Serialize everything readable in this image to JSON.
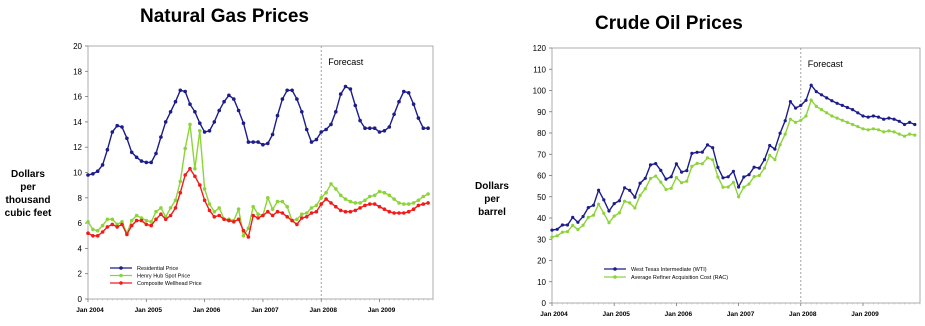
{
  "chart_data": [
    {
      "type": "line",
      "title": "Natural Gas Prices",
      "ylabel": [
        "Dollars",
        "per",
        "thousand",
        "cubic feet"
      ],
      "ylim": [
        0,
        20
      ],
      "yticks": [
        0,
        2,
        4,
        6,
        8,
        10,
        12,
        14,
        16,
        18,
        20
      ],
      "xlim": [
        0,
        71
      ],
      "xticks": [
        {
          "label": "Jan 2004",
          "month": 0
        },
        {
          "label": "Jan 2005",
          "month": 12
        },
        {
          "label": "Jan 2006",
          "month": 24
        },
        {
          "label": "Jan 2007",
          "month": 36
        },
        {
          "label": "Jan 2008",
          "month": 48
        },
        {
          "label": "Jan 2009",
          "month": 60
        }
      ],
      "forecast": {
        "label": "Forecast",
        "month": 48
      },
      "grid": false,
      "legend": "bottom-left",
      "series": [
        {
          "name": "Residential Price",
          "color": "#1c1c8a",
          "values": [
            9.8,
            9.9,
            10.1,
            10.6,
            11.8,
            13.2,
            13.7,
            13.6,
            12.7,
            11.6,
            11.2,
            10.9,
            10.8,
            10.8,
            11.5,
            12.8,
            14.0,
            14.8,
            15.6,
            16.5,
            16.4,
            15.4,
            14.8,
            13.9,
            13.2,
            13.3,
            14.0,
            14.9,
            15.6,
            16.1,
            15.8,
            14.9,
            13.9,
            12.4,
            12.4,
            12.4,
            12.2,
            12.3,
            13.0,
            14.5,
            15.8,
            16.5,
            16.5,
            15.8,
            14.8,
            13.4,
            12.4,
            12.6,
            13.2,
            13.4,
            13.8,
            14.8,
            16.2,
            16.8,
            16.6,
            15.3,
            14.1,
            13.5,
            13.5,
            13.5,
            13.2,
            13.3,
            13.6,
            14.6,
            15.6,
            16.4,
            16.3,
            15.4,
            14.3,
            13.5,
            13.5
          ]
        },
        {
          "name": "Henry Hub Spot Price",
          "color": "#8cd43a",
          "values": [
            6.1,
            5.5,
            5.4,
            5.8,
            6.3,
            6.3,
            5.9,
            6.1,
            5.2,
            6.2,
            6.6,
            6.4,
            6.2,
            6.1,
            6.9,
            7.2,
            6.5,
            7.2,
            7.8,
            9.3,
            11.9,
            13.8,
            10.3,
            13.3,
            8.7,
            7.5,
            6.9,
            7.2,
            6.3,
            6.3,
            6.2,
            7.1,
            5.0,
            5.6,
            7.3,
            6.7,
            6.6,
            8.0,
            7.1,
            7.7,
            7.7,
            7.3,
            6.2,
            6.3,
            6.7,
            6.8,
            7.2,
            7.4,
            8.0,
            8.4,
            9.1,
            8.7,
            8.2,
            7.9,
            7.7,
            7.6,
            7.6,
            7.8,
            8.1,
            8.2,
            8.5,
            8.4,
            8.2,
            7.9,
            7.6,
            7.5,
            7.5,
            7.6,
            7.8,
            8.1,
            8.3
          ]
        },
        {
          "name": "Composite Wellhead Price",
          "color": "#f21a1a",
          "values": [
            5.2,
            5.0,
            5.0,
            5.3,
            5.7,
            5.9,
            5.7,
            5.9,
            5.1,
            5.8,
            6.2,
            6.2,
            5.9,
            5.8,
            6.3,
            6.7,
            6.3,
            6.6,
            7.2,
            8.4,
            9.8,
            10.3,
            9.7,
            9.0,
            7.8,
            7.0,
            6.5,
            6.6,
            6.3,
            6.2,
            6.1,
            6.3,
            5.4,
            4.9,
            6.6,
            6.4,
            6.6,
            6.9,
            6.6,
            6.9,
            6.8,
            6.5,
            6.2,
            5.9,
            6.4,
            6.5,
            6.8,
            6.9,
            7.5,
            7.9,
            7.6,
            7.3,
            7.0,
            6.9,
            6.9,
            7.0,
            7.2,
            7.4,
            7.5,
            7.5,
            7.3,
            7.1,
            6.9,
            6.8,
            6.8,
            6.8,
            6.9,
            7.1,
            7.4,
            7.5,
            7.6
          ]
        }
      ]
    },
    {
      "type": "line",
      "title": "Crude Oil Prices",
      "ylabel": [
        "Dollars",
        "per",
        "barrel"
      ],
      "ylim": [
        0,
        120
      ],
      "yticks": [
        0,
        10,
        20,
        30,
        40,
        50,
        60,
        70,
        80,
        90,
        100,
        110,
        120
      ],
      "xlim": [
        0,
        71
      ],
      "xticks": [
        {
          "label": "Jan 2004",
          "month": 0
        },
        {
          "label": "Jan 2005",
          "month": 12
        },
        {
          "label": "Jan 2006",
          "month": 24
        },
        {
          "label": "Jan 2007",
          "month": 36
        },
        {
          "label": "Jan 2008",
          "month": 48
        },
        {
          "label": "Jan 2009",
          "month": 60
        }
      ],
      "forecast": {
        "label": "Forecast",
        "month": 48
      },
      "grid": false,
      "legend": "bottom-left",
      "series": [
        {
          "name": "West Texas Intermediate (WTI)",
          "color": "#1c1c8a",
          "values": [
            34.3,
            34.7,
            36.7,
            36.7,
            40.3,
            38.0,
            40.7,
            44.9,
            46.0,
            53.1,
            48.5,
            43.3,
            46.8,
            48.1,
            54.2,
            53.0,
            49.8,
            56.4,
            58.7,
            65.0,
            65.6,
            62.4,
            58.3,
            59.4,
            65.5,
            61.6,
            62.3,
            70.4,
            70.9,
            71.0,
            74.4,
            73.1,
            63.8,
            58.9,
            59.4,
            62.0,
            54.6,
            59.3,
            60.4,
            63.9,
            63.5,
            67.5,
            74.1,
            72.4,
            79.9,
            85.8,
            94.8,
            91.7,
            93.0,
            95.4,
            102.5,
            99.5,
            98.0,
            96.5,
            95.2,
            94.0,
            93.0,
            92.0,
            91.0,
            89.5,
            88.0,
            87.5,
            88.0,
            87.5,
            86.5,
            87.0,
            86.5,
            85.5,
            84.0,
            85.0,
            84.0
          ]
        },
        {
          "name": "Average Refiner Acquisition Cost (RAC)",
          "color": "#8cd43a",
          "values": [
            31.0,
            31.6,
            33.3,
            33.6,
            36.5,
            34.6,
            36.6,
            40.3,
            41.3,
            46.5,
            42.2,
            37.8,
            40.9,
            42.4,
            47.9,
            47.1,
            44.7,
            50.6,
            53.8,
            58.6,
            59.7,
            56.9,
            53.4,
            54.0,
            59.0,
            56.6,
            57.3,
            64.3,
            65.7,
            65.5,
            68.3,
            67.4,
            59.3,
            54.5,
            54.6,
            56.8,
            50.0,
            54.5,
            56.0,
            59.5,
            60.0,
            63.5,
            69.5,
            67.5,
            74.5,
            79.5,
            86.5,
            85.0,
            86.0,
            88.0,
            95.5,
            92.5,
            91.0,
            89.5,
            88.0,
            87.0,
            86.0,
            85.0,
            84.0,
            83.0,
            82.0,
            81.5,
            82.0,
            81.5,
            80.5,
            81.0,
            80.5,
            79.5,
            78.5,
            79.5,
            79.0
          ]
        }
      ]
    }
  ]
}
